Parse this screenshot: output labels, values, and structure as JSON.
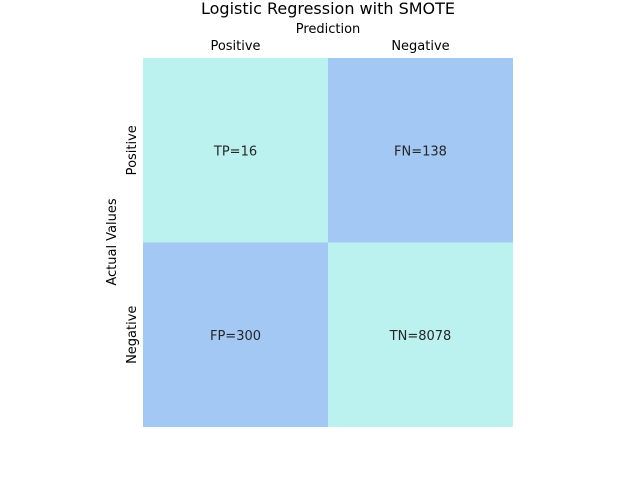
{
  "chart_data": {
    "type": "heatmap",
    "title": "Logistic Regression with SMOTE",
    "xlabel": "Prediction",
    "ylabel": "Actual Values",
    "x_tick_position": "top",
    "columns": [
      "Positive",
      "Negative"
    ],
    "rows": [
      "Positive",
      "Negative"
    ],
    "values": [
      [
        16,
        138
      ],
      [
        300,
        8078
      ]
    ],
    "cell_labels": [
      [
        "TP=16",
        "FN=138"
      ],
      [
        "FP=300",
        "TN=8078"
      ]
    ],
    "colors": {
      "diagonal": "#bbf2ef",
      "off_diagonal": "#a3c8f4"
    },
    "colorbar": false
  }
}
